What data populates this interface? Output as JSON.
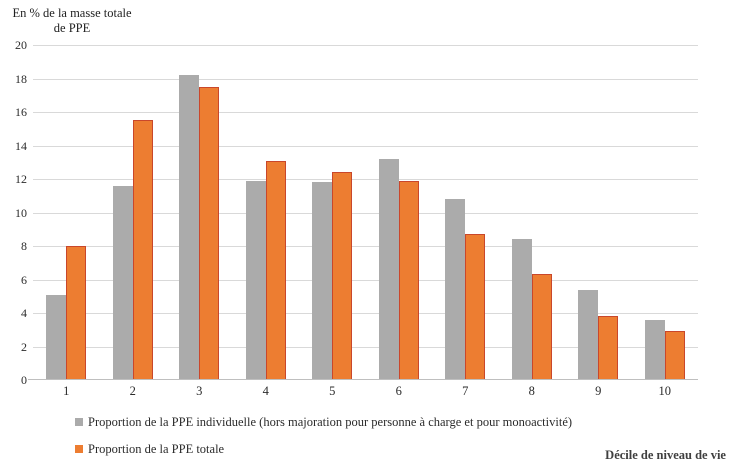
{
  "y_axis_title": {
    "line1": "En % de la masse totale",
    "line2": "de PPE"
  },
  "chart_data": {
    "type": "bar",
    "categories": [
      "1",
      "2",
      "3",
      "4",
      "5",
      "6",
      "7",
      "8",
      "9",
      "10"
    ],
    "series": [
      {
        "name": "Proportion de la PPE individuelle (hors majoration pour personne à charge et pour monoactivité)",
        "color": "#ababab",
        "values": [
          5.1,
          11.6,
          18.2,
          11.9,
          11.8,
          13.2,
          10.8,
          8.4,
          5.4,
          3.6
        ]
      },
      {
        "name": "Proportion de la PPE totale",
        "color": "#ed7d31",
        "values": [
          8.0,
          15.5,
          17.5,
          13.1,
          12.4,
          11.9,
          8.7,
          6.3,
          3.8,
          2.9
        ]
      }
    ],
    "xlabel": "Décile de niveau de vie",
    "ylabel": "En % de la masse totale de PPE",
    "ylim": [
      0,
      20
    ],
    "yticks": [
      0,
      2,
      4,
      6,
      8,
      10,
      12,
      14,
      16,
      18,
      20
    ],
    "grid": true,
    "legend_position": "bottom-left"
  },
  "colors": {
    "gridline": "#d9d9d9",
    "axis_line": "#bfbfbf",
    "series_gray": "#ababab",
    "series_orange": "#ed7d31",
    "orange_border": "#c9472b",
    "text": "#2b2b2b"
  }
}
